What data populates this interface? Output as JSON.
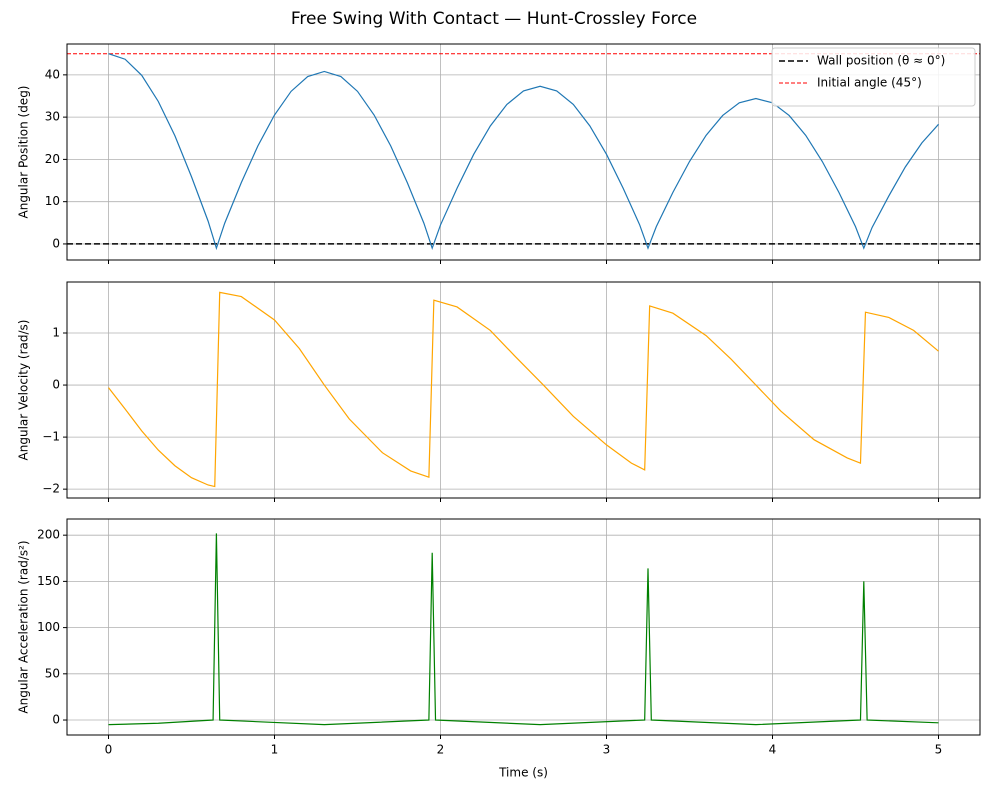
{
  "title": "Free Swing With Contact — Hunt-Crossley Force",
  "chart_data": [
    {
      "type": "line",
      "ylabel": "Angular Position (deg)",
      "xlim": [
        -0.25,
        5.25
      ],
      "ylim": [
        -3.8,
        47.3
      ],
      "xticks": [
        0,
        1,
        2,
        3,
        4,
        5
      ],
      "show_xtick_labels": false,
      "yticks": [
        0,
        10,
        20,
        30,
        40
      ],
      "grid": true,
      "legend": "upper right",
      "x": [
        0,
        0.1,
        0.2,
        0.3,
        0.4,
        0.5,
        0.6,
        0.65,
        0.7,
        0.8,
        0.9,
        1.0,
        1.1,
        1.2,
        1.3,
        1.4,
        1.5,
        1.6,
        1.7,
        1.8,
        1.9,
        1.95,
        2.0,
        2.1,
        2.2,
        2.3,
        2.4,
        2.5,
        2.6,
        2.7,
        2.8,
        2.9,
        3.0,
        3.1,
        3.2,
        3.25,
        3.3,
        3.4,
        3.5,
        3.6,
        3.7,
        3.8,
        3.9,
        4.0,
        4.1,
        4.2,
        4.3,
        4.4,
        4.5,
        4.55,
        4.6,
        4.7,
        4.8,
        4.9,
        5.0
      ],
      "series": [
        {
          "color": "#1f77b4",
          "values": [
            45,
            43.7,
            39.9,
            33.7,
            25.6,
            15.9,
            5.4,
            -1,
            4.9,
            14.5,
            23.2,
            30.5,
            36.1,
            39.6,
            40.8,
            39.6,
            36.1,
            30.5,
            23.2,
            14.5,
            4.9,
            -1,
            4.5,
            13.2,
            21.2,
            27.9,
            33.0,
            36.2,
            37.3,
            36.2,
            33.0,
            27.9,
            21.2,
            13.2,
            4.5,
            -1,
            4.1,
            12.2,
            19.5,
            25.7,
            30.4,
            33.4,
            34.4,
            33.4,
            30.4,
            25.7,
            19.5,
            12.2,
            4.1,
            -1,
            3.9,
            11.3,
            18.2,
            23.9,
            28.3
          ]
        }
      ],
      "hlines": [
        {
          "name": "Wall position (θ ≈ 0°)",
          "color": "#000000",
          "value": 0,
          "linewidth": 1.5
        },
        {
          "name": "Initial angle (45°)",
          "color": "#ff0000",
          "value": 45,
          "linewidth": 1
        }
      ]
    },
    {
      "type": "line",
      "ylabel": "Angular Velocity (rad/s)",
      "xlim": [
        -0.25,
        5.25
      ],
      "ylim": [
        -2.17,
        1.98
      ],
      "xticks": [
        0,
        1,
        2,
        3,
        4,
        5
      ],
      "show_xtick_labels": false,
      "yticks": [
        {
          "value": -2,
          "label": "−2"
        },
        {
          "value": -1,
          "label": "−1"
        },
        0,
        1
      ],
      "grid": true,
      "x": [
        0,
        0.1,
        0.2,
        0.3,
        0.4,
        0.5,
        0.6,
        0.64,
        0.67,
        0.8,
        1.0,
        1.15,
        1.3,
        1.45,
        1.65,
        1.82,
        1.93,
        1.96,
        2.1,
        2.3,
        2.45,
        2.62,
        2.8,
        3.0,
        3.15,
        3.23,
        3.26,
        3.4,
        3.6,
        3.75,
        3.9,
        4.05,
        4.25,
        4.45,
        4.53,
        4.56,
        4.7,
        4.85,
        5.0
      ],
      "series": [
        {
          "color": "#ffa500",
          "values": [
            -0.05,
            -0.46,
            -0.88,
            -1.25,
            -1.55,
            -1.78,
            -1.92,
            -1.95,
            1.78,
            1.7,
            1.25,
            0.7,
            0,
            -0.65,
            -1.3,
            -1.65,
            -1.77,
            1.63,
            1.5,
            1.05,
            0.55,
            0,
            -0.6,
            -1.15,
            -1.5,
            -1.63,
            1.52,
            1.38,
            0.95,
            0.5,
            0,
            -0.5,
            -1.05,
            -1.4,
            -1.5,
            1.4,
            1.3,
            1.05,
            0.65
          ]
        }
      ]
    },
    {
      "type": "line",
      "ylabel": "Angular Acceleration (rad/s²)",
      "xlabel": "Time (s)",
      "xlim": [
        -0.25,
        5.25
      ],
      "ylim": [
        -16.2,
        217.5
      ],
      "xticks": [
        0,
        1,
        2,
        3,
        4,
        5
      ],
      "show_xtick_labels": true,
      "yticks": [
        0,
        50,
        100,
        150,
        200
      ],
      "grid": true,
      "x": [
        0,
        0.3,
        0.63,
        0.65,
        0.67,
        1.3,
        1.93,
        1.95,
        1.97,
        2.6,
        3.23,
        3.25,
        3.27,
        3.9,
        4.53,
        4.55,
        4.57,
        5.0
      ],
      "series": [
        {
          "color": "#008000",
          "values": [
            -5,
            -3.5,
            0,
            202,
            0,
            -5,
            0,
            181,
            0,
            -5,
            0,
            164,
            0,
            -5,
            0,
            150,
            0,
            -3
          ]
        }
      ]
    }
  ]
}
